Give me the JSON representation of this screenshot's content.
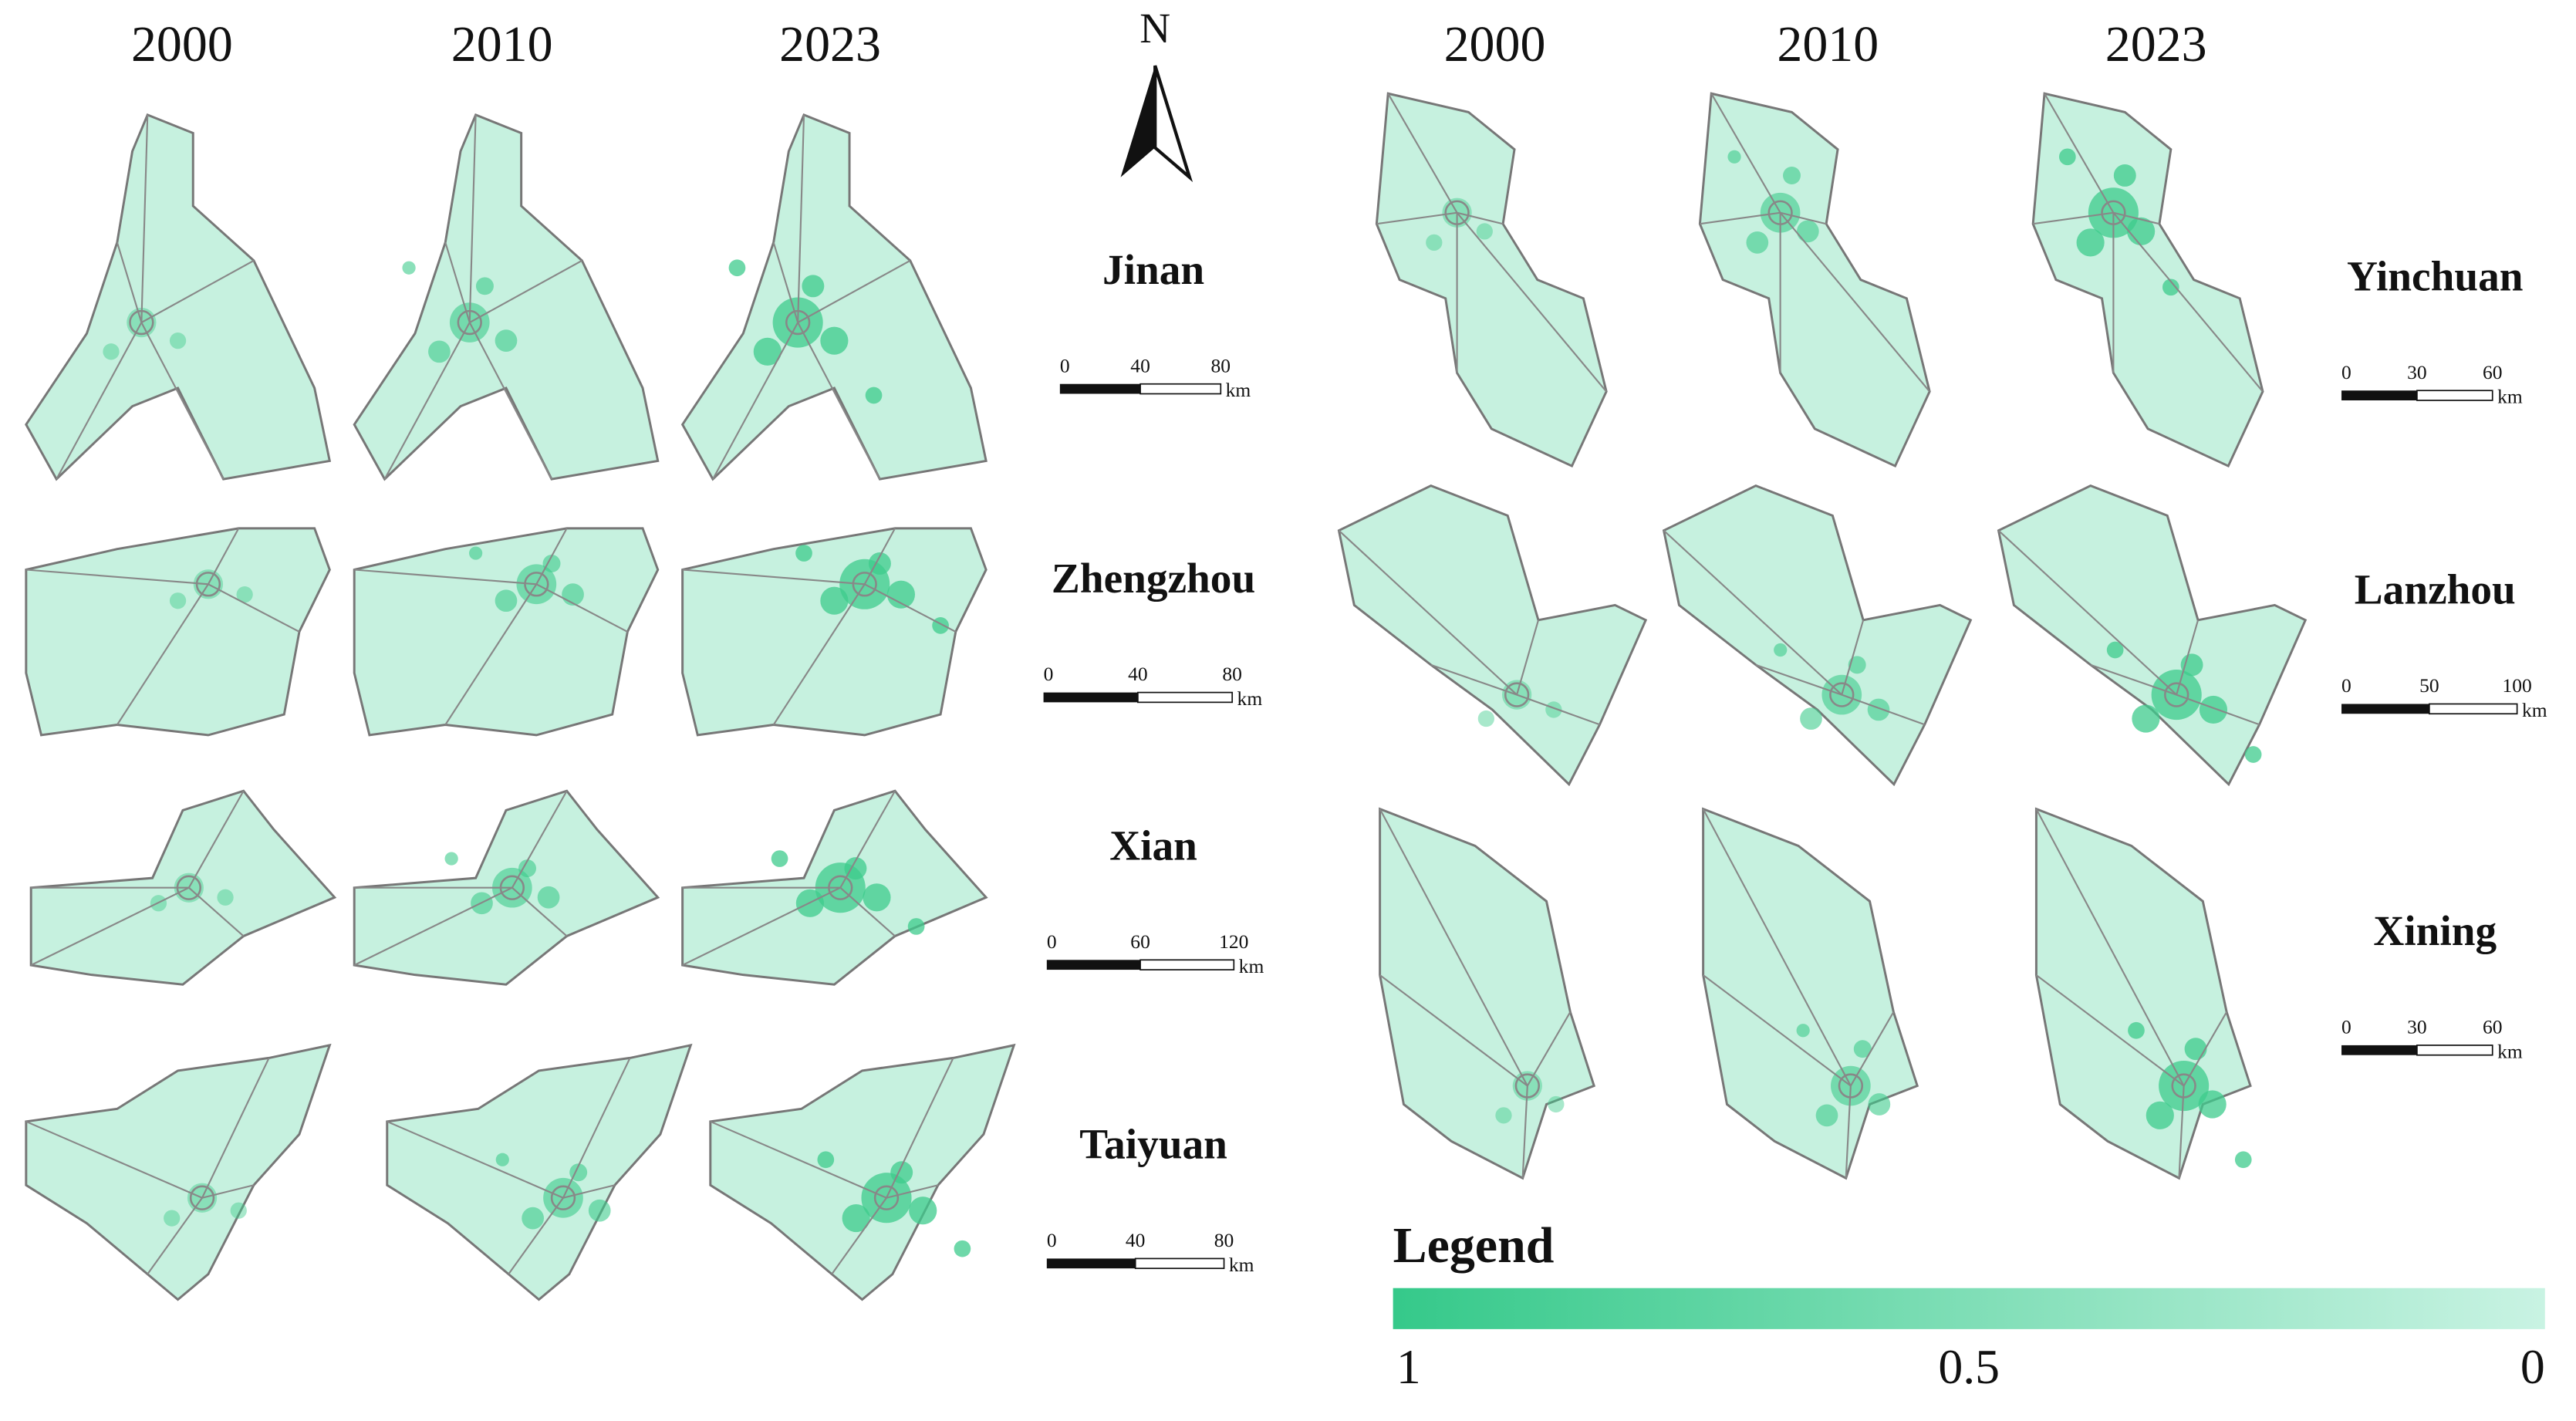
{
  "left_panel": {
    "years": [
      "2000",
      "2010",
      "2023"
    ],
    "cities": [
      {
        "name": "Jinan",
        "scale": {
          "ticks": [
            0,
            40,
            80
          ],
          "unit": "km"
        }
      },
      {
        "name": "Zhengzhou",
        "scale": {
          "ticks": [
            0,
            40,
            80
          ],
          "unit": "km"
        }
      },
      {
        "name": "Xian",
        "scale": {
          "ticks": [
            0,
            60,
            120
          ],
          "unit": "km"
        }
      },
      {
        "name": "Taiyuan",
        "scale": {
          "ticks": [
            0,
            40,
            80
          ],
          "unit": "km"
        }
      }
    ]
  },
  "right_panel": {
    "years": [
      "2000",
      "2010",
      "2023"
    ],
    "cities": [
      {
        "name": "Yinchuan",
        "scale": {
          "ticks": [
            0,
            30,
            60
          ],
          "unit": "km"
        }
      },
      {
        "name": "Lanzhou",
        "scale": {
          "ticks": [
            0,
            50,
            100
          ],
          "unit": "km"
        }
      },
      {
        "name": "Xining",
        "scale": {
          "ticks": [
            0,
            30,
            60
          ],
          "unit": "km"
        }
      }
    ]
  },
  "north_arrow": {
    "label": "N"
  },
  "legend": {
    "title": "Legend",
    "ticks": [
      1,
      0.5,
      0
    ]
  }
}
